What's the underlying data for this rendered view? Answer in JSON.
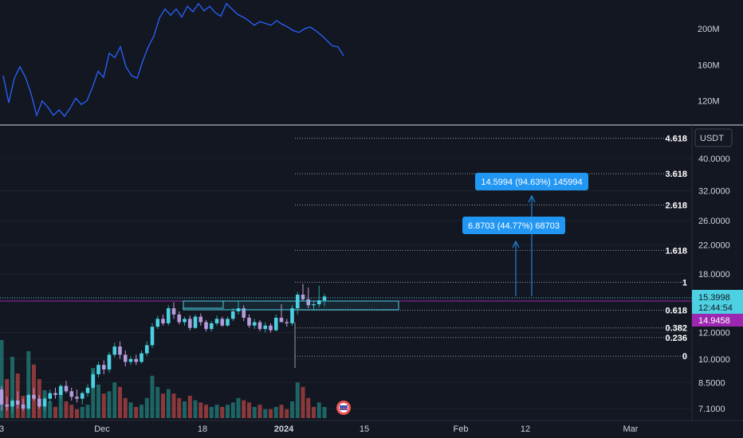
{
  "chart_data": [
    {
      "type": "line",
      "panel": "indicator",
      "title": "",
      "y_axis_ticks": [
        {
          "value": 200,
          "label": "200M"
        },
        {
          "value": 160,
          "label": "160M"
        },
        {
          "value": 120,
          "label": "120M"
        }
      ],
      "ylim": [
        95,
        232
      ],
      "series": [
        {
          "color": "#2962ff",
          "x": [
            0,
            1,
            2,
            3,
            4,
            5,
            6,
            7,
            8,
            9,
            10,
            11,
            12,
            13,
            14,
            15,
            16,
            17,
            18,
            19,
            20,
            21,
            22,
            23,
            24,
            25,
            26,
            27,
            28,
            29,
            30,
            31,
            32,
            33,
            34,
            35,
            36,
            37,
            38,
            39,
            40,
            41,
            42,
            43,
            44,
            45,
            46,
            47,
            48,
            49,
            50,
            51,
            52,
            53,
            54,
            55,
            56,
            57,
            58,
            59,
            60,
            61
          ],
          "values": [
            148,
            118,
            145,
            158,
            146,
            128,
            104,
            120,
            113,
            104,
            110,
            103,
            112,
            123,
            116,
            120,
            135,
            153,
            146,
            173,
            168,
            180,
            158,
            148,
            145,
            164,
            180,
            192,
            212,
            222,
            215,
            222,
            213,
            225,
            219,
            228,
            220,
            225,
            218,
            214,
            228,
            222,
            216,
            213,
            209,
            204,
            208,
            206,
            204,
            209,
            205,
            202,
            198,
            196,
            200,
            202,
            198,
            193,
            187,
            181,
            180,
            170
          ]
        }
      ]
    },
    {
      "type": "candlestick",
      "panel": "price",
      "currency": "USDT",
      "y_axis_ticks": [
        "40.0000",
        "32.0000",
        "26.0000",
        "22.0000",
        "18.0000",
        "12.0000",
        "10.0000",
        "8.5000",
        "7.1000"
      ],
      "x_axis_ticks": [
        "3",
        "Dec",
        "18",
        "2024",
        "15",
        "Feb",
        "12",
        "Mar"
      ],
      "current_price": "15.3998",
      "countdown": "12:44:54",
      "other_price": "14.9458",
      "candles": [
        {
          "o": 8.1,
          "h": 8.3,
          "l": 7.0,
          "c": 7.3
        },
        {
          "o": 7.3,
          "h": 7.7,
          "l": 7.0,
          "c": 7.2
        },
        {
          "o": 7.2,
          "h": 7.6,
          "l": 6.9,
          "c": 7.5
        },
        {
          "o": 7.5,
          "h": 8.0,
          "l": 7.1,
          "c": 7.3
        },
        {
          "o": 7.3,
          "h": 7.6,
          "l": 7.0,
          "c": 7.1
        },
        {
          "o": 7.1,
          "h": 7.9,
          "l": 7.0,
          "c": 7.8
        },
        {
          "o": 7.8,
          "h": 8.2,
          "l": 7.5,
          "c": 7.6
        },
        {
          "o": 7.6,
          "h": 7.8,
          "l": 7.1,
          "c": 7.2
        },
        {
          "o": 7.2,
          "h": 7.7,
          "l": 7.0,
          "c": 7.6
        },
        {
          "o": 7.6,
          "h": 8.1,
          "l": 7.4,
          "c": 7.9
        },
        {
          "o": 7.9,
          "h": 8.2,
          "l": 7.6,
          "c": 7.8
        },
        {
          "o": 7.8,
          "h": 8.4,
          "l": 7.6,
          "c": 8.3
        },
        {
          "o": 8.3,
          "h": 8.6,
          "l": 7.9,
          "c": 8.0
        },
        {
          "o": 8.0,
          "h": 8.2,
          "l": 7.5,
          "c": 7.7
        },
        {
          "o": 7.7,
          "h": 8.1,
          "l": 7.4,
          "c": 7.6
        },
        {
          "o": 7.6,
          "h": 8.0,
          "l": 7.3,
          "c": 7.9
        },
        {
          "o": 7.9,
          "h": 8.4,
          "l": 7.7,
          "c": 8.2
        },
        {
          "o": 8.2,
          "h": 9.2,
          "l": 8.1,
          "c": 9.0
        },
        {
          "o": 9.0,
          "h": 9.8,
          "l": 8.8,
          "c": 9.6
        },
        {
          "o": 9.6,
          "h": 9.9,
          "l": 9.0,
          "c": 9.3
        },
        {
          "o": 9.3,
          "h": 10.5,
          "l": 9.1,
          "c": 10.3
        },
        {
          "o": 10.3,
          "h": 11.2,
          "l": 10.1,
          "c": 10.9
        },
        {
          "o": 10.9,
          "h": 11.3,
          "l": 10.0,
          "c": 10.3
        },
        {
          "o": 10.3,
          "h": 10.6,
          "l": 9.5,
          "c": 9.8
        },
        {
          "o": 9.8,
          "h": 10.2,
          "l": 9.6,
          "c": 10.0
        },
        {
          "o": 10.0,
          "h": 10.3,
          "l": 9.6,
          "c": 9.8
        },
        {
          "o": 9.8,
          "h": 10.6,
          "l": 9.7,
          "c": 10.4
        },
        {
          "o": 10.4,
          "h": 11.3,
          "l": 10.2,
          "c": 11.0
        },
        {
          "o": 11.0,
          "h": 12.8,
          "l": 10.8,
          "c": 12.5
        },
        {
          "o": 12.5,
          "h": 13.5,
          "l": 12.3,
          "c": 13.2
        },
        {
          "o": 13.2,
          "h": 13.6,
          "l": 12.6,
          "c": 12.8
        },
        {
          "o": 12.8,
          "h": 14.5,
          "l": 12.6,
          "c": 14.2
        },
        {
          "o": 14.2,
          "h": 14.8,
          "l": 13.2,
          "c": 13.6
        },
        {
          "o": 13.6,
          "h": 13.9,
          "l": 12.7,
          "c": 12.9
        },
        {
          "o": 12.9,
          "h": 13.4,
          "l": 12.6,
          "c": 13.2
        },
        {
          "o": 13.2,
          "h": 13.5,
          "l": 12.2,
          "c": 12.4
        },
        {
          "o": 12.4,
          "h": 13.6,
          "l": 12.3,
          "c": 13.4
        },
        {
          "o": 13.4,
          "h": 13.7,
          "l": 12.6,
          "c": 12.9
        },
        {
          "o": 12.9,
          "h": 13.1,
          "l": 12.1,
          "c": 12.3
        },
        {
          "o": 12.3,
          "h": 13.0,
          "l": 12.1,
          "c": 12.8
        },
        {
          "o": 12.8,
          "h": 13.5,
          "l": 12.6,
          "c": 13.2
        },
        {
          "o": 13.2,
          "h": 13.4,
          "l": 12.5,
          "c": 12.6
        },
        {
          "o": 12.6,
          "h": 13.4,
          "l": 12.5,
          "c": 13.2
        },
        {
          "o": 13.2,
          "h": 14.2,
          "l": 13.0,
          "c": 13.9
        },
        {
          "o": 13.9,
          "h": 14.9,
          "l": 13.6,
          "c": 14.2
        },
        {
          "o": 14.2,
          "h": 14.5,
          "l": 13.0,
          "c": 13.3
        },
        {
          "o": 13.3,
          "h": 13.6,
          "l": 12.4,
          "c": 12.6
        },
        {
          "o": 12.6,
          "h": 13.2,
          "l": 12.3,
          "c": 12.9
        },
        {
          "o": 12.9,
          "h": 13.1,
          "l": 12.1,
          "c": 12.3
        },
        {
          "o": 12.3,
          "h": 12.9,
          "l": 12.0,
          "c": 12.6
        },
        {
          "o": 12.6,
          "h": 12.8,
          "l": 12.0,
          "c": 12.2
        },
        {
          "o": 12.2,
          "h": 13.6,
          "l": 12.1,
          "c": 13.3
        },
        {
          "o": 13.3,
          "h": 14.6,
          "l": 12.9,
          "c": 12.9
        },
        {
          "o": 12.9,
          "h": 13.2,
          "l": 12.5,
          "c": 12.8
        },
        {
          "o": 12.8,
          "h": 14.5,
          "l": 12.6,
          "c": 14.2
        },
        {
          "o": 14.2,
          "h": 15.9,
          "l": 13.6,
          "c": 15.6
        },
        {
          "o": 15.6,
          "h": 16.8,
          "l": 14.9,
          "c": 15.1
        },
        {
          "o": 15.1,
          "h": 16.4,
          "l": 14.2,
          "c": 14.5
        },
        {
          "o": 14.5,
          "h": 14.9,
          "l": 14.0,
          "c": 14.6
        },
        {
          "o": 14.6,
          "h": 16.6,
          "l": 14.3,
          "c": 15.0
        },
        {
          "o": 15.0,
          "h": 15.7,
          "l": 14.4,
          "c": 15.4
        }
      ],
      "volume": [
        {
          "v": 70,
          "up": true
        },
        {
          "v": 35,
          "up": false
        },
        {
          "v": 55,
          "up": true
        },
        {
          "v": 40,
          "up": false
        },
        {
          "v": 20,
          "up": false
        },
        {
          "v": 60,
          "up": true
        },
        {
          "v": 48,
          "up": false
        },
        {
          "v": 35,
          "up": false
        },
        {
          "v": 25,
          "up": true
        },
        {
          "v": 15,
          "up": true
        },
        {
          "v": 10,
          "up": false
        },
        {
          "v": 25,
          "up": true
        },
        {
          "v": 15,
          "up": false
        },
        {
          "v": 12,
          "up": false
        },
        {
          "v": 8,
          "up": false
        },
        {
          "v": 10,
          "up": true
        },
        {
          "v": 12,
          "up": true
        },
        {
          "v": 45,
          "up": true
        },
        {
          "v": 30,
          "up": true
        },
        {
          "v": 22,
          "up": false
        },
        {
          "v": 24,
          "up": true
        },
        {
          "v": 32,
          "up": true
        },
        {
          "v": 28,
          "up": false
        },
        {
          "v": 18,
          "up": false
        },
        {
          "v": 14,
          "up": true
        },
        {
          "v": 10,
          "up": false
        },
        {
          "v": 12,
          "up": true
        },
        {
          "v": 18,
          "up": true
        },
        {
          "v": 38,
          "up": true
        },
        {
          "v": 28,
          "up": true
        },
        {
          "v": 22,
          "up": false
        },
        {
          "v": 26,
          "up": true
        },
        {
          "v": 22,
          "up": false
        },
        {
          "v": 18,
          "up": false
        },
        {
          "v": 15,
          "up": true
        },
        {
          "v": 20,
          "up": false
        },
        {
          "v": 16,
          "up": true
        },
        {
          "v": 14,
          "up": false
        },
        {
          "v": 12,
          "up": false
        },
        {
          "v": 10,
          "up": true
        },
        {
          "v": 12,
          "up": true
        },
        {
          "v": 10,
          "up": false
        },
        {
          "v": 12,
          "up": true
        },
        {
          "v": 14,
          "up": true
        },
        {
          "v": 18,
          "up": true
        },
        {
          "v": 16,
          "up": false
        },
        {
          "v": 14,
          "up": false
        },
        {
          "v": 10,
          "up": true
        },
        {
          "v": 12,
          "up": false
        },
        {
          "v": 8,
          "up": true
        },
        {
          "v": 8,
          "up": false
        },
        {
          "v": 10,
          "up": true
        },
        {
          "v": 12,
          "up": false
        },
        {
          "v": 8,
          "up": false
        },
        {
          "v": 15,
          "up": true
        },
        {
          "v": 32,
          "up": true
        },
        {
          "v": 28,
          "up": false
        },
        {
          "v": 18,
          "up": false
        },
        {
          "v": 10,
          "up": false
        },
        {
          "v": 14,
          "up": true
        },
        {
          "v": 10,
          "up": true
        }
      ],
      "fib_levels": [
        {
          "ratio": "4.618",
          "price": "46.00"
        },
        {
          "ratio": "3.618",
          "price": "36.00"
        },
        {
          "ratio": "2.618",
          "price": "29.00"
        },
        {
          "ratio": "1.618",
          "price": "21.20"
        },
        {
          "ratio": "1",
          "price": "17.00"
        },
        {
          "ratio": "0.618",
          "price": "14.00"
        },
        {
          "ratio": "0.382",
          "price": "12.40"
        },
        {
          "ratio": "0.236",
          "price": "11.60"
        },
        {
          "ratio": "0",
          "price": "10.20"
        }
      ],
      "measurements": [
        {
          "label": "6.8703 (44.77%) 68703"
        },
        {
          "label": "14.5994 (94.63%) 145994"
        }
      ]
    }
  ]
}
